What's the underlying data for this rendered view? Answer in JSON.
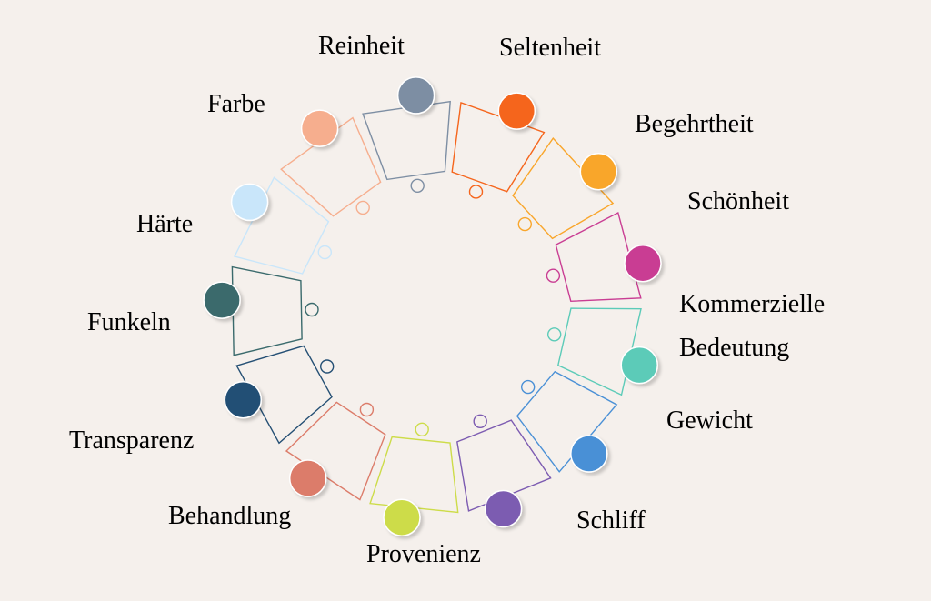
{
  "segments": [
    {
      "label": "Reinheit",
      "style": "bold",
      "color": "#7d8ea3"
    },
    {
      "label": "Seltenheit",
      "style": "bold",
      "color": "#f5651c"
    },
    {
      "label": "Begehrtheit",
      "style": "italic",
      "color": "#f9a62b"
    },
    {
      "label": "Schönheit",
      "style": "italic",
      "color": "#c93d93"
    },
    {
      "label": "Kommerzielle\nBedeutung",
      "style": "italic",
      "color": "#5ccbb8"
    },
    {
      "label": "Gewicht",
      "style": "muted",
      "color": "#4a90d6"
    },
    {
      "label": "Schliff",
      "style": "muted",
      "color": "#7c5bb1"
    },
    {
      "label": "Provenienz",
      "style": "muted",
      "color": "#cddc49"
    },
    {
      "label": "Behandlung",
      "style": "muted",
      "color": "#dc7c6a"
    },
    {
      "label": "Transparenz",
      "style": "bold",
      "color": "#244f74"
    },
    {
      "label": "Funkeln",
      "style": "bold",
      "color": "#3a6a6c"
    },
    {
      "label": "Härte",
      "style": "bold",
      "color": "#c9e6fa"
    },
    {
      "label": "Farbe",
      "style": "bold",
      "color": "#f6ae8e"
    }
  ]
}
